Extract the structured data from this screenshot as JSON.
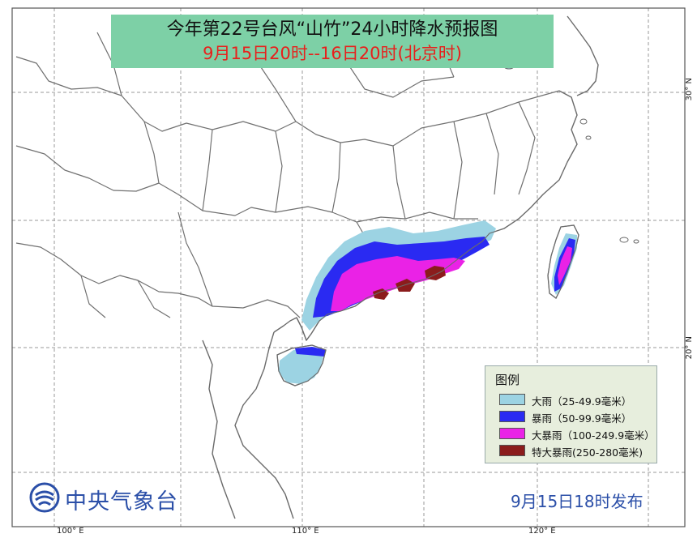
{
  "title": "今年第22号台风“山竹”24小时降水预报图",
  "subtitle": "9月15日20时--16日20时(北京时)",
  "legend": {
    "title": "图例",
    "items": [
      {
        "label": "大雨（25-49.9毫米）",
        "color": "#9cd3e3"
      },
      {
        "label": "暴雨（50-99.9毫米）",
        "color": "#2a2af2"
      },
      {
        "label": "大暴雨（100-249.9毫米）",
        "color": "#ea22e6"
      },
      {
        "label": "特大暴雨(250-280毫米)",
        "color": "#8b1c1c"
      }
    ]
  },
  "grid": {
    "lat_labels": [
      "30° N",
      "20° N"
    ],
    "lon_labels": [
      "100° E",
      "110° E",
      "120° E"
    ]
  },
  "footer": {
    "agency": "中央气象台",
    "issue_time": "9月15日18时发布"
  },
  "colors": {
    "title_bg": "#7dd0a6",
    "subtitle": "#e8201c",
    "agency_text": "#2b4fa8",
    "boundary": "#707070"
  }
}
